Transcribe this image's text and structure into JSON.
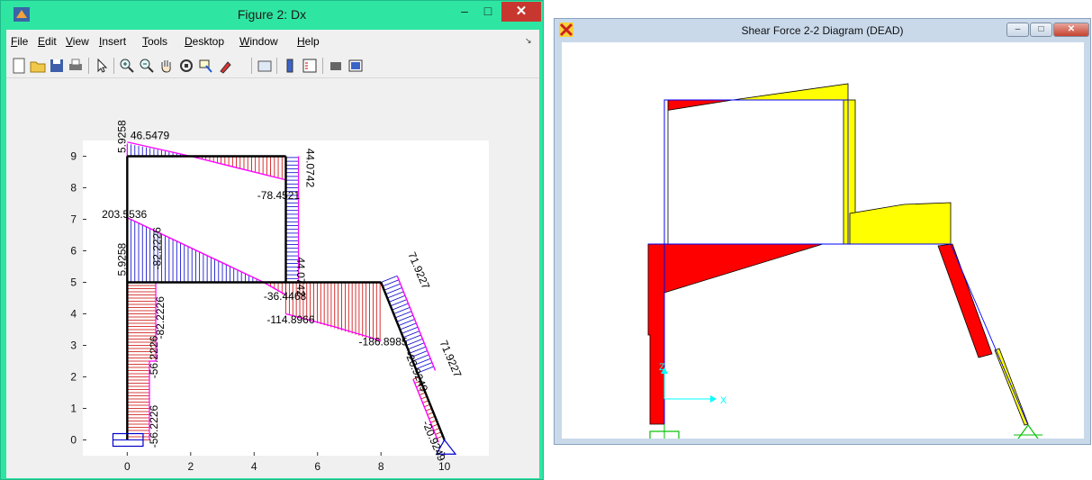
{
  "figure_window": {
    "title": "Figure 2: Dx",
    "menu": [
      {
        "label": "File",
        "accel": "F"
      },
      {
        "label": "Edit",
        "accel": "E"
      },
      {
        "label": "View",
        "accel": "V"
      },
      {
        "label": "Insert",
        "accel": "I"
      },
      {
        "label": "Tools",
        "accel": "T"
      },
      {
        "label": "Desktop",
        "accel": "D"
      },
      {
        "label": "Window",
        "accel": "W"
      },
      {
        "label": "Help",
        "accel": "H"
      }
    ],
    "toolbar_icons": [
      "new-figure-icon",
      "open-file-icon",
      "save-icon",
      "print-icon",
      "pointer-icon",
      "zoom-in-icon",
      "zoom-out-icon",
      "pan-icon",
      "rotate-3d-icon",
      "data-cursor-icon",
      "brush-icon",
      "link-plot-icon",
      "insert-colorbar-icon",
      "insert-legend-icon",
      "hide-plot-tools-icon",
      "show-plot-tools-icon"
    ],
    "axes": {
      "xlim": [
        -1.4,
        11.4
      ],
      "ylim": [
        -0.5,
        9.5
      ],
      "xticks": [
        "0",
        "2",
        "4",
        "6",
        "8",
        "10"
      ],
      "yticks": [
        "0",
        "1",
        "2",
        "3",
        "4",
        "5",
        "6",
        "7",
        "8",
        "9"
      ]
    },
    "labels": [
      {
        "text": "46.5479"
      },
      {
        "text": "5.9258"
      },
      {
        "text": "44.0742"
      },
      {
        "text": "-78.4521"
      },
      {
        "text": "203.5536"
      },
      {
        "text": "5.9258"
      },
      {
        "text": "-82.2226"
      },
      {
        "text": "44.0742"
      },
      {
        "text": "-36.4468"
      },
      {
        "text": "-114.8966"
      },
      {
        "text": "-186.8985"
      },
      {
        "text": "71.9227"
      },
      {
        "text": "71.9227"
      },
      {
        "text": "-56.2226"
      },
      {
        "text": "-82.2226"
      },
      {
        "text": "-20.9249"
      },
      {
        "text": "-56.2226"
      },
      {
        "text": "-20.9249"
      }
    ],
    "colors": {
      "positive": "#0000cc",
      "negative": "#cc0000",
      "envelope": "#ff00ff",
      "frame": "#000000"
    }
  },
  "sap_window": {
    "title": "Shear Force 2-2 Diagram   (DEAD)",
    "controls": [
      "minimize",
      "maximize",
      "close"
    ],
    "axis_labels": {
      "x": "X",
      "z": "Z"
    },
    "colors": {
      "positive": "#ffff00",
      "negative": "#ff0000",
      "axis": "#00ffff",
      "support": "#00c000",
      "frame": "#0000ff"
    }
  }
}
